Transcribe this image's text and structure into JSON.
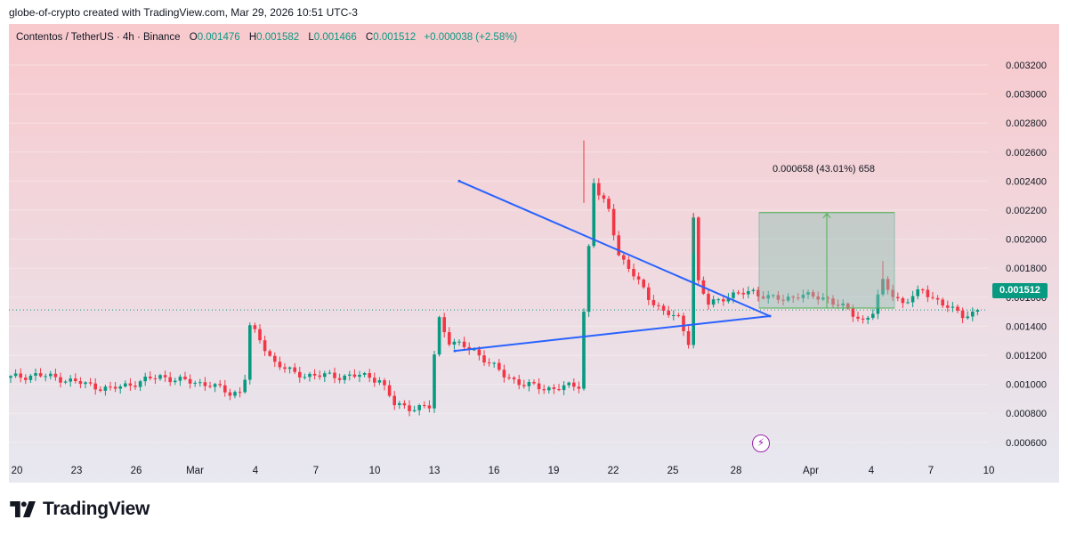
{
  "header": {
    "caption": "globe-of-crypto created with TradingView.com, Mar 29, 2026 10:51 UTC-3"
  },
  "legend": {
    "symbol": "Contentos / TetherUS · 4h · Binance",
    "open_label": "O",
    "open": "0.001476",
    "high_label": "H",
    "high": "0.001582",
    "low_label": "L",
    "low": "0.001466",
    "close_label": "C",
    "close": "0.001512",
    "change": "+0.000038 (+2.58%)"
  },
  "price_badge": "0.001512",
  "measure_label": "0.000658 (43.01%) 658",
  "brand": {
    "name": "TradingView",
    "logo_icon": "tradingview-logo-icon"
  },
  "flash_icon": "lightning-icon",
  "colors": {
    "up": "#089981",
    "down": "#f23645",
    "trendline": "#2962ff",
    "bg_top": "#f8c9cd",
    "bg_bottom": "#e6e6ef"
  },
  "chart_data": {
    "type": "candlestick",
    "ylim": [
      0.0005,
      0.0033
    ],
    "y_ticks": [
      "0.003200",
      "0.003000",
      "0.002800",
      "0.002600",
      "0.002400",
      "0.002200",
      "0.002000",
      "0.001800",
      "0.001600",
      "0.001400",
      "0.001200",
      "0.001000",
      "0.000800",
      "0.000600"
    ],
    "x_ticks": [
      "20",
      "23",
      "26",
      "Mar",
      "4",
      "7",
      "10",
      "13",
      "16",
      "19",
      "22",
      "25",
      "28",
      "Apr",
      "4",
      "7",
      "10"
    ],
    "last_price": 0.001512,
    "trendlines": [
      {
        "name": "upper",
        "from": [
          "Mar 14",
          0.0024
        ],
        "to": [
          "Mar 29",
          0.00147
        ]
      },
      {
        "name": "lower",
        "from": [
          "Mar 14",
          0.00123
        ],
        "to": [
          "Mar 29",
          0.00147
        ]
      }
    ],
    "measure": {
      "from": 0.001525,
      "to": 0.002183,
      "change": 0.000658,
      "percent": 43.01
    },
    "path": [
      [
        0,
        0.001045
      ],
      [
        5,
        0.001065
      ],
      [
        10,
        0.00104
      ],
      [
        15,
        0.001
      ],
      [
        20,
        0.000965
      ],
      [
        25,
        0.00101
      ],
      [
        30,
        0.001055
      ],
      [
        35,
        0.00102
      ],
      [
        40,
        0.001
      ],
      [
        44,
        0.000935
      ],
      [
        46,
        0.00095
      ],
      [
        47,
        0.00105
      ],
      [
        48,
        0.0014
      ],
      [
        50,
        0.0013
      ],
      [
        53,
        0.00115
      ],
      [
        57,
        0.00107
      ],
      [
        62,
        0.00106
      ],
      [
        66,
        0.001055
      ],
      [
        70,
        0.00106
      ],
      [
        74,
        0.001035
      ],
      [
        77,
        0.00086
      ],
      [
        80,
        0.00084
      ],
      [
        84,
        0.00084
      ],
      [
        85,
        0.0012
      ],
      [
        86,
        0.00145
      ],
      [
        88,
        0.0013
      ],
      [
        90,
        0.00127
      ],
      [
        93,
        0.00123
      ],
      [
        96,
        0.00115
      ],
      [
        99,
        0.00106
      ],
      [
        103,
        0.001
      ],
      [
        107,
        0.00097
      ],
      [
        111,
        0.00098
      ],
      [
        114,
        0.00099
      ],
      [
        115,
        0.0015
      ],
      [
        117,
        0.0024
      ],
      [
        118,
        0.0023
      ],
      [
        120,
        0.0022
      ],
      [
        122,
        0.0019
      ],
      [
        125,
        0.00175
      ],
      [
        128,
        0.0016
      ],
      [
        131,
        0.0015
      ],
      [
        134,
        0.00145
      ],
      [
        136,
        0.0013
      ],
      [
        137,
        0.00215
      ],
      [
        138,
        0.0017
      ],
      [
        140,
        0.00155
      ],
      [
        143,
        0.0016
      ],
      [
        146,
        0.00162
      ],
      [
        149,
        0.00164
      ],
      [
        152,
        0.0016
      ],
      [
        155,
        0.00158
      ],
      [
        158,
        0.00162
      ],
      [
        161,
        0.0016
      ],
      [
        164,
        0.00159
      ],
      [
        167,
        0.00153
      ],
      [
        169,
        0.00148
      ],
      [
        171,
        0.00144
      ],
      [
        173,
        0.0015
      ],
      [
        175,
        0.0017
      ],
      [
        177,
        0.00162
      ],
      [
        179,
        0.00156
      ],
      [
        181,
        0.0016
      ],
      [
        183,
        0.00165
      ],
      [
        185,
        0.0016
      ],
      [
        187,
        0.00155
      ],
      [
        189,
        0.00151
      ],
      [
        191,
        0.00148
      ],
      [
        193,
        0.00149
      ],
      [
        194,
        0.001512
      ]
    ]
  }
}
